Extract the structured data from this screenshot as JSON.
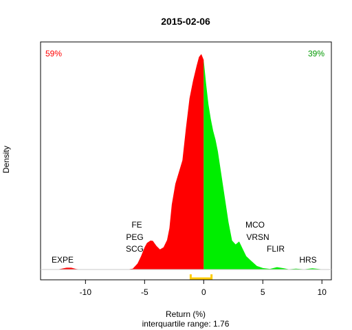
{
  "chart_data": {
    "type": "area",
    "title": "2015-02-06",
    "xlabel": "Return (%)",
    "ylabel": "Density",
    "subtitle": "interquartile range: 1.76",
    "xlim": [
      -13.8,
      10.8
    ],
    "xticks": [
      -10,
      -5,
      0,
      5,
      10
    ],
    "split_at": 0,
    "pct_below": "59%",
    "pct_above": "39%",
    "colors": {
      "below": "#ff0000",
      "above": "#00ee00",
      "iqr": "#ffcc00",
      "pct_below": "#ff0000",
      "pct_above": "#009900"
    },
    "iqr_range": [
      -1.1,
      0.66
    ],
    "density": {
      "x": [
        -12.4,
        -12.0,
        -11.6,
        -11.2,
        -10.8,
        -10.4,
        -6.5,
        -6.0,
        -5.6,
        -5.3,
        -5.0,
        -4.8,
        -4.5,
        -4.3,
        -4.0,
        -3.7,
        -3.4,
        -3.1,
        -2.9,
        -2.7,
        -2.4,
        -2.1,
        -1.8,
        -1.5,
        -1.2,
        -0.9,
        -0.6,
        -0.4,
        -0.2,
        0.0,
        0.2,
        0.4,
        0.6,
        0.8,
        1.0,
        1.2,
        1.5,
        1.8,
        2.1,
        2.4,
        2.7,
        3.0,
        3.3,
        3.6,
        4.0,
        4.5,
        5.0,
        5.6,
        6.2,
        6.8,
        7.2,
        7.8,
        8.5,
        9.2,
        9.7,
        10.2
      ],
      "y": [
        0,
        0.003,
        0.006,
        0.006,
        0.002,
        0,
        0,
        0.003,
        0.02,
        0.045,
        0.075,
        0.09,
        0.098,
        0.097,
        0.08,
        0.068,
        0.075,
        0.1,
        0.14,
        0.22,
        0.29,
        0.33,
        0.37,
        0.48,
        0.58,
        0.64,
        0.69,
        0.72,
        0.73,
        0.71,
        0.63,
        0.56,
        0.51,
        0.47,
        0.44,
        0.4,
        0.32,
        0.24,
        0.16,
        0.098,
        0.085,
        0.095,
        0.07,
        0.045,
        0.03,
        0.012,
        0.005,
        0.002,
        0.008,
        0.004,
        0.001,
        0.003,
        0.001,
        0.004,
        0.002,
        0
      ],
      "ymax": 0.75
    },
    "annotations": [
      {
        "label": "EXPE",
        "x": -11.6
      },
      {
        "label": "SCG",
        "x": -5.3
      },
      {
        "label": "PEG",
        "x": -5.3
      },
      {
        "label": "FE",
        "x": -5.3
      },
      {
        "label": "MCO",
        "x": 5.0
      },
      {
        "label": "VRSN",
        "x": 5.0
      },
      {
        "label": "FLIR",
        "x": 6.8
      },
      {
        "label": "HRS",
        "x": 9.7
      }
    ]
  }
}
